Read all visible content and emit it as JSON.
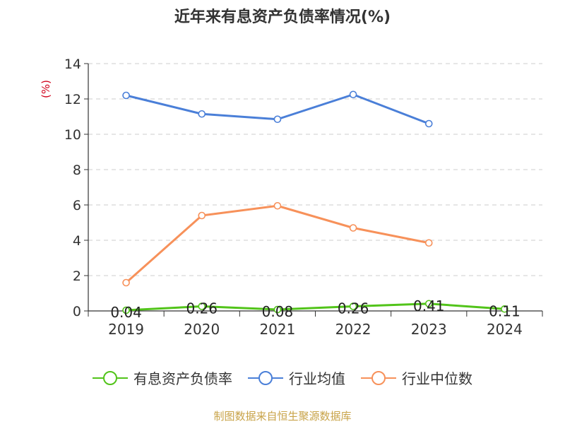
{
  "chart_data": {
    "type": "line",
    "title": "近年来有息资产负债率情况(%)",
    "ylabel": "(%)",
    "xlabel": "",
    "categories": [
      "2019",
      "2020",
      "2021",
      "2022",
      "2023",
      "2024"
    ],
    "ylim": [
      0,
      14
    ],
    "yticks": [
      0,
      2,
      4,
      6,
      8,
      10,
      12,
      14
    ],
    "grid": true,
    "legend_position": "bottom",
    "series": [
      {
        "name": "有息资产负债率",
        "color": "#52c41a",
        "values": [
          0.04,
          0.26,
          0.08,
          0.26,
          0.41,
          0.11
        ],
        "labels": [
          "0.04",
          "0.26",
          "0.08",
          "0.26",
          "0.41",
          "0.11"
        ]
      },
      {
        "name": "行业均值",
        "color": "#4a7fd8",
        "values": [
          12.2,
          11.15,
          10.85,
          12.25,
          10.6,
          null
        ]
      },
      {
        "name": "行业中位数",
        "color": "#f7915a",
        "values": [
          1.6,
          5.4,
          5.95,
          4.7,
          3.85,
          null
        ]
      }
    ]
  },
  "source": "制图数据来自恒生聚源数据库"
}
